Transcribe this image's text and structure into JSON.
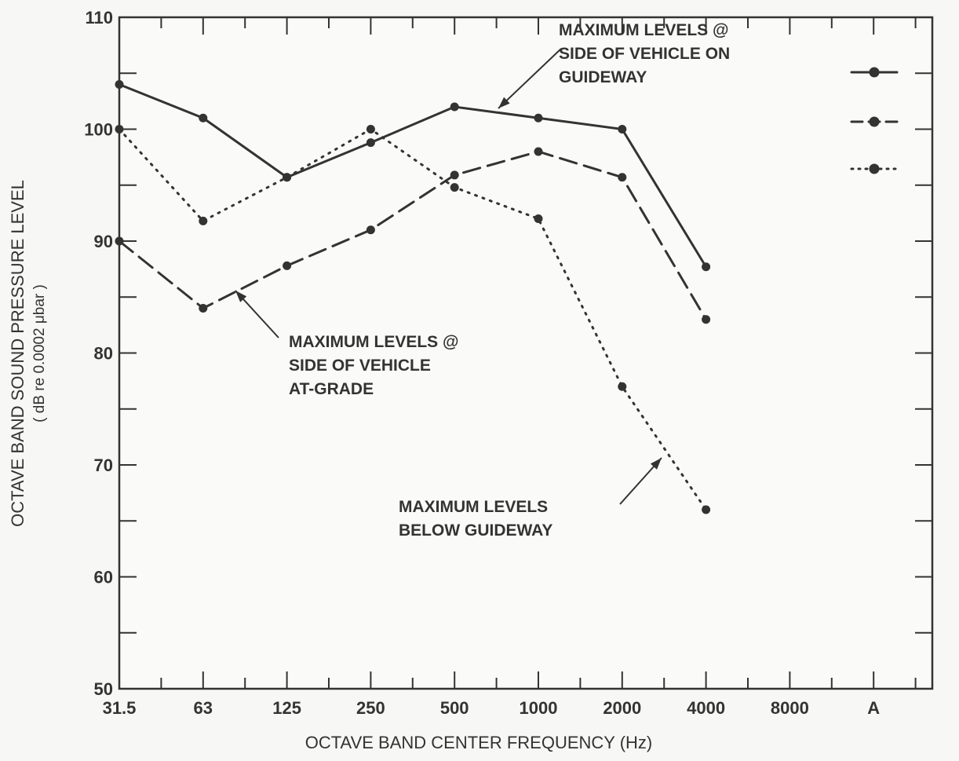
{
  "chart_data": {
    "type": "line",
    "x_label": "OCTAVE BAND CENTER FREQUENCY  (Hz)",
    "y_label": [
      "OCTAVE BAND SOUND PRESSURE LEVEL",
      "( dB re 0.0002 μbar )"
    ],
    "categories": [
      "31.5",
      "63",
      "125",
      "250",
      "500",
      "1000",
      "2000",
      "4000",
      "8000",
      "A"
    ],
    "ylim": [
      50,
      110
    ],
    "yticks": [
      50,
      60,
      70,
      80,
      90,
      100,
      110
    ],
    "series": [
      {
        "color": "#333333",
        "style": "solid",
        "values": [
          104,
          101,
          95.7,
          98.8,
          102,
          101,
          100,
          87.7,
          null,
          null
        ]
      },
      {
        "color": "#333333",
        "style": "dashed",
        "values": [
          90,
          84,
          87.8,
          91,
          95.9,
          98,
          95.7,
          83,
          null,
          null
        ]
      },
      {
        "color": "#333333",
        "style": "dotted",
        "values": [
          100,
          91.8,
          95.7,
          100,
          94.8,
          92,
          77,
          66,
          null,
          null
        ]
      }
    ],
    "annotations": [
      {
        "series": 0,
        "lines": [
          "MAXIMUM LEVELS @",
          "SIDE OF VEHICLE ON",
          "GUIDEWAY"
        ]
      },
      {
        "series": 1,
        "lines": [
          "MAXIMUM LEVELS @",
          "SIDE OF VEHICLE",
          "AT-GRADE"
        ]
      },
      {
        "series": 2,
        "lines": [
          "MAXIMUM LEVELS",
          "BELOW  GUIDEWAY"
        ]
      }
    ],
    "legend": "top-right"
  }
}
